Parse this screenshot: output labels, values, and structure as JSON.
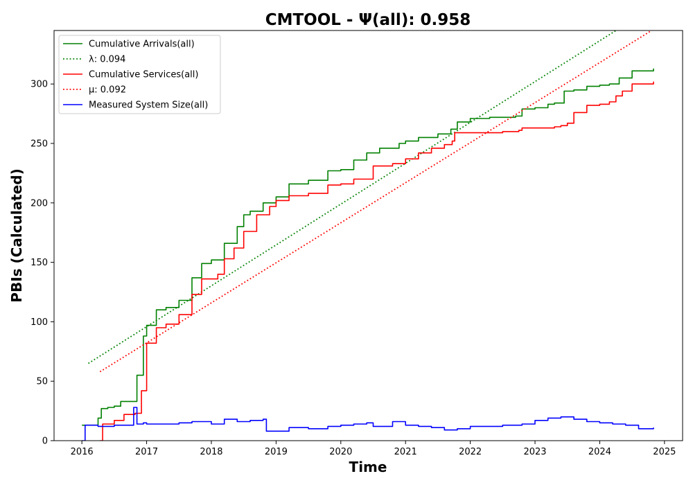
{
  "chart_data": {
    "type": "line",
    "title": "CMTOOL -  Ψ(all): 0.958",
    "xlabel": "Time",
    "ylabel": "PBIs (Calculated)",
    "xlim": [
      2015.57,
      2025.28
    ],
    "ylim": [
      0,
      345
    ],
    "xticks": [
      2016,
      2017,
      2018,
      2019,
      2020,
      2021,
      2022,
      2023,
      2024,
      2025
    ],
    "yticks": [
      0,
      50,
      100,
      150,
      200,
      250,
      300
    ],
    "grid": false,
    "legend_position": "top-left",
    "series": [
      {
        "name": "Cumulative Arrivals(all)",
        "color": "#008000",
        "style": "solid",
        "x": [
          2016.0,
          2016.2,
          2016.25,
          2016.3,
          2016.4,
          2016.5,
          2016.6,
          2016.8,
          2016.85,
          2016.95,
          2017.0,
          2017.15,
          2017.3,
          2017.5,
          2017.7,
          2017.85,
          2018.0,
          2018.2,
          2018.4,
          2018.5,
          2018.6,
          2018.8,
          2019.0,
          2019.2,
          2019.5,
          2019.8,
          2020.0,
          2020.2,
          2020.4,
          2020.6,
          2020.9,
          2021.0,
          2021.2,
          2021.5,
          2021.7,
          2021.8,
          2022.0,
          2022.3,
          2022.7,
          2022.8,
          2023.0,
          2023.2,
          2023.3,
          2023.45,
          2023.6,
          2023.8,
          2024.0,
          2024.15,
          2024.3,
          2024.5,
          2024.83
        ],
        "y": [
          13,
          13,
          19,
          27,
          28,
          29,
          33,
          33,
          55,
          88,
          97,
          110,
          112,
          118,
          137,
          149,
          152,
          166,
          180,
          190,
          193,
          200,
          205,
          216,
          219,
          227,
          228,
          236,
          242,
          246,
          250,
          252,
          255,
          258,
          262,
          268,
          271,
          272,
          273,
          279,
          280,
          283,
          284,
          294,
          295,
          298,
          299,
          300,
          305,
          311,
          313
        ]
      },
      {
        "name": "λ: 0.094",
        "color": "#008000",
        "style": "dotted",
        "x": [
          2016.1,
          2024.95
        ],
        "y": [
          65,
          369
        ]
      },
      {
        "name": "Cumulative Services(all)",
        "color": "#ff0000",
        "style": "solid",
        "x": [
          2016.28,
          2016.32,
          2016.5,
          2016.65,
          2016.82,
          2016.92,
          2017.0,
          2017.15,
          2017.3,
          2017.5,
          2017.7,
          2017.85,
          2018.1,
          2018.2,
          2018.35,
          2018.5,
          2018.7,
          2018.9,
          2019.0,
          2019.2,
          2019.5,
          2019.8,
          2020.0,
          2020.2,
          2020.5,
          2020.8,
          2021.0,
          2021.2,
          2021.4,
          2021.6,
          2021.72,
          2021.76,
          2022.0,
          2022.5,
          2022.75,
          2022.8,
          2023.0,
          2023.3,
          2023.4,
          2023.5,
          2023.6,
          2023.8,
          2024.0,
          2024.15,
          2024.25,
          2024.35,
          2024.5,
          2024.83
        ],
        "y": [
          0,
          14,
          17,
          22,
          23,
          42,
          82,
          95,
          98,
          106,
          123,
          136,
          140,
          153,
          162,
          176,
          190,
          197,
          202,
          206,
          208,
          215,
          216,
          220,
          231,
          233,
          237,
          242,
          246,
          249,
          252,
          259,
          259,
          260,
          261,
          263,
          263,
          264,
          265,
          267,
          276,
          282,
          283,
          285,
          290,
          294,
          300,
          302
        ]
      },
      {
        "name": "μ: 0.092",
        "color": "#ff0000",
        "style": "dotted",
        "x": [
          2016.28,
          2024.95
        ],
        "y": [
          58,
          350
        ]
      },
      {
        "name": "Measured System Size(all)",
        "color": "#0000ff",
        "style": "solid",
        "x": [
          2016.0,
          2016.05,
          2016.25,
          2016.5,
          2016.78,
          2016.8,
          2016.85,
          2016.95,
          2017.0,
          2017.2,
          2017.5,
          2017.7,
          2017.8,
          2018.0,
          2018.2,
          2018.4,
          2018.6,
          2018.8,
          2018.85,
          2019.0,
          2019.2,
          2019.5,
          2019.8,
          2020.0,
          2020.2,
          2020.4,
          2020.5,
          2020.8,
          2021.0,
          2021.2,
          2021.4,
          2021.6,
          2021.8,
          2022.0,
          2022.5,
          2022.8,
          2023.0,
          2023.2,
          2023.4,
          2023.6,
          2023.8,
          2024.0,
          2024.2,
          2024.4,
          2024.6,
          2024.83
        ],
        "y": [
          0,
          13,
          12,
          13,
          13,
          28,
          14,
          15,
          14,
          14,
          15,
          16,
          16,
          14,
          18,
          16,
          17,
          18,
          8,
          8,
          11,
          10,
          12,
          13,
          14,
          15,
          12,
          16,
          13,
          12,
          11,
          9,
          10,
          12,
          13,
          14,
          17,
          19,
          20,
          18,
          16,
          15,
          14,
          13,
          10,
          11
        ]
      }
    ]
  }
}
